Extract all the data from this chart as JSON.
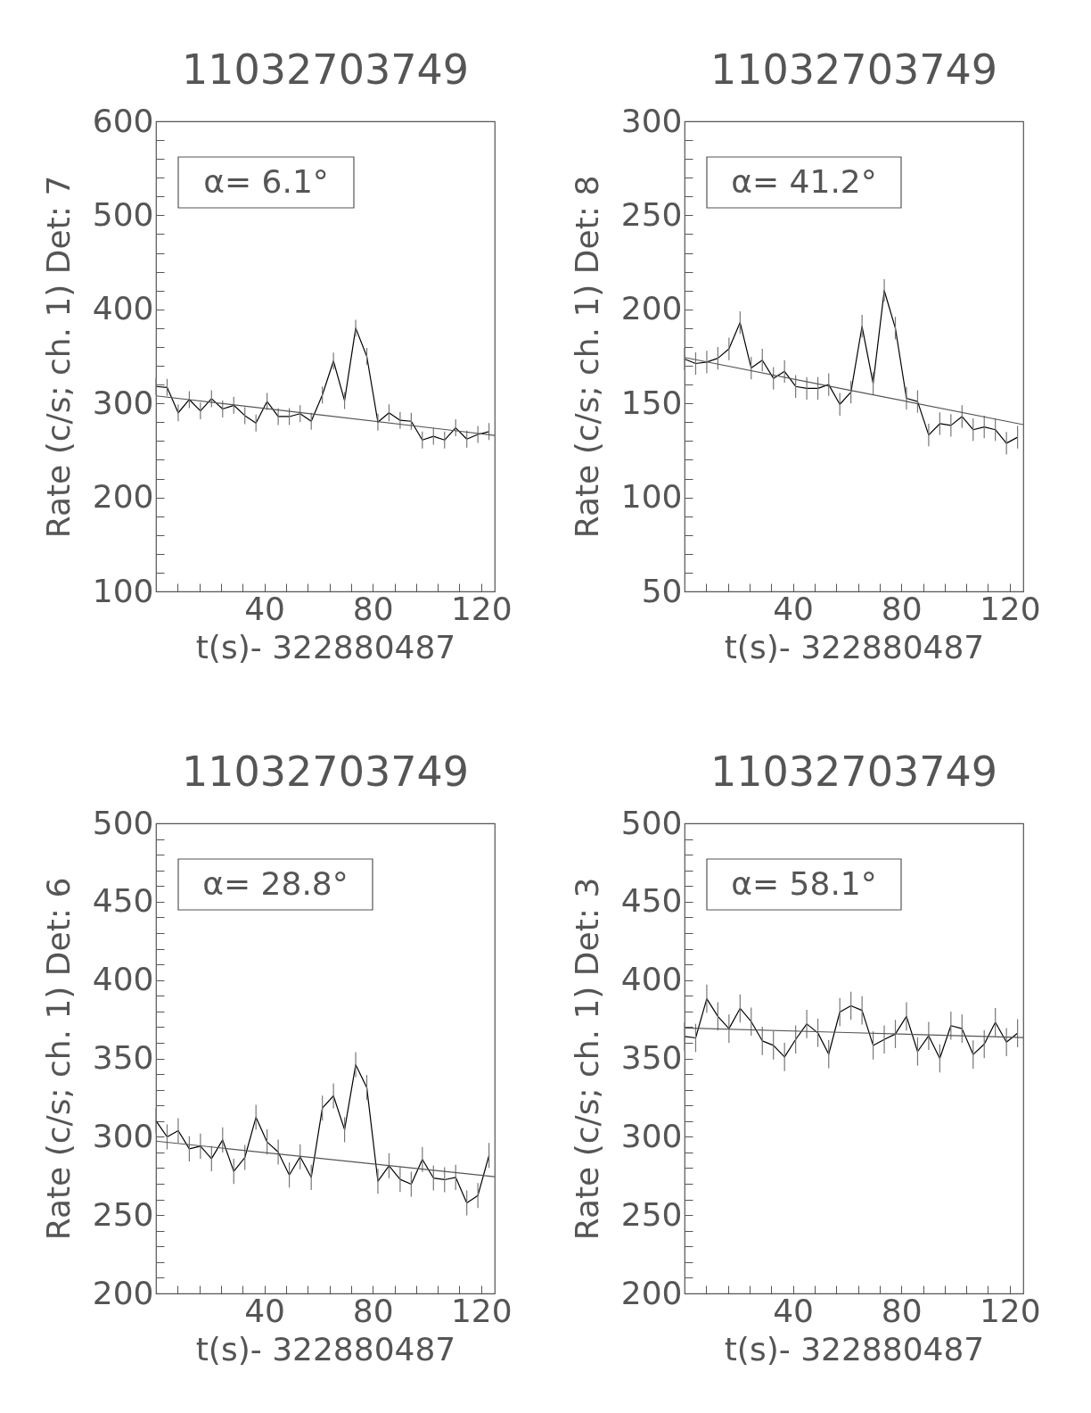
{
  "chart_data": [
    {
      "type": "line",
      "title": "11032703749",
      "xlabel": "t(s)- 322880487",
      "ylabel": "Rate (c/s; ch. 1) Det: 7",
      "annotations": [
        "α= 6.1°"
      ],
      "x": [
        0,
        4.1,
        8.2,
        12.3,
        16.4,
        20.5,
        24.6,
        28.7,
        32.8,
        36.9,
        41,
        45.1,
        49.2,
        53.2,
        57.3,
        61.4,
        65.5,
        69.6,
        73.7,
        77.8,
        81.9,
        86,
        90.1,
        94.2,
        98.3,
        102.4,
        106.5,
        110.6,
        114.7,
        118.8,
        122.9
      ],
      "series": [
        {
          "color": "#000000",
          "values": [
            318,
            317,
            290,
            304,
            292,
            305,
            294,
            298,
            287,
            279,
            302,
            286,
            286,
            289,
            281,
            309,
            345,
            303,
            380,
            350,
            280,
            290,
            282,
            281,
            261,
            265,
            261,
            274,
            262,
            267,
            270
          ],
          "errors": [
            9,
            9,
            9,
            9,
            9,
            9,
            9,
            9,
            9,
            9,
            9,
            9,
            9,
            9,
            9,
            9,
            9,
            9,
            9,
            9,
            9,
            9,
            9,
            9,
            9,
            9,
            9,
            9,
            9,
            9,
            9
          ]
        },
        {
          "color": "#555555",
          "x": [
            0,
            60,
            125
          ],
          "values": [
            308,
            288,
            266
          ]
        }
      ],
      "xlim": [
        0,
        125
      ],
      "xticks": [
        {
          "value": 8,
          "label": null
        },
        {
          "value": 16,
          "label": null
        },
        {
          "value": 24,
          "label": null
        },
        {
          "value": 32,
          "label": null
        },
        40,
        {
          "value": 48,
          "label": null
        },
        {
          "value": 56,
          "label": null
        },
        {
          "value": 64,
          "label": null
        },
        {
          "value": 72,
          "label": null
        },
        80,
        {
          "value": 88,
          "label": null
        },
        {
          "value": 96,
          "label": null
        },
        {
          "value": 104,
          "label": null
        },
        {
          "value": 112,
          "label": null
        },
        120
      ],
      "ylim": [
        100,
        600
      ],
      "yticks": [
        100,
        {
          "value": 120,
          "label": null
        },
        {
          "value": 140,
          "label": null
        },
        {
          "value": 160,
          "label": null
        },
        {
          "value": 180,
          "label": null
        },
        200,
        {
          "value": 220,
          "label": null
        },
        {
          "value": 240,
          "label": null
        },
        {
          "value": 260,
          "label": null
        },
        {
          "value": 280,
          "label": null
        },
        300,
        {
          "value": 320,
          "label": null
        },
        {
          "value": 340,
          "label": null
        },
        {
          "value": 360,
          "label": null
        },
        {
          "value": 380,
          "label": null
        },
        400,
        {
          "value": 420,
          "label": null
        },
        {
          "value": 440,
          "label": null
        },
        {
          "value": 460,
          "label": null
        },
        {
          "value": 480,
          "label": null
        },
        500,
        {
          "value": 520,
          "label": null
        },
        {
          "value": 540,
          "label": null
        },
        {
          "value": 560,
          "label": null
        },
        {
          "value": 580,
          "label": null
        },
        600
      ]
    },
    {
      "type": "line",
      "title": "11032703749",
      "xlabel": "t(s)- 322880487",
      "ylabel": "Rate (c/s; ch. 1) Det: 8",
      "annotations": [
        "α= 41.2°"
      ],
      "x": [
        0,
        4.1,
        8.2,
        12.3,
        16.4,
        20.5,
        24.6,
        28.7,
        32.8,
        36.9,
        41,
        45.1,
        49.2,
        53.2,
        57.3,
        61.4,
        65.5,
        69.6,
        73.7,
        77.8,
        81.9,
        86,
        90.1,
        94.2,
        98.3,
        102.4,
        106.5,
        110.6,
        114.7,
        118.8,
        122.9
      ],
      "series": [
        {
          "color": "#000000",
          "values": [
            173.6,
            171.2,
            172,
            174,
            179,
            193,
            168.8,
            173,
            163.3,
            167,
            159,
            158,
            158,
            160,
            149.5,
            156,
            191,
            160.6,
            210,
            190,
            152.7,
            151,
            133.2,
            139.2,
            138.3,
            143,
            136,
            137.5,
            136,
            128.8,
            132
          ],
          "errors": [
            6,
            6,
            6,
            6,
            6,
            6,
            6,
            6,
            6,
            6,
            6,
            6,
            6,
            6,
            6,
            6,
            6,
            6,
            6,
            6,
            6,
            6,
            6,
            6,
            6,
            6,
            6,
            6,
            6,
            6,
            6
          ]
        },
        {
          "color": "#555555",
          "x": [
            0,
            60,
            125
          ],
          "values": [
            174.4,
            157.3,
            138.7
          ]
        }
      ],
      "xlim": [
        0,
        125
      ],
      "xticks": [
        {
          "value": 8,
          "label": null
        },
        {
          "value": 16,
          "label": null
        },
        {
          "value": 24,
          "label": null
        },
        {
          "value": 32,
          "label": null
        },
        40,
        {
          "value": 48,
          "label": null
        },
        {
          "value": 56,
          "label": null
        },
        {
          "value": 64,
          "label": null
        },
        {
          "value": 72,
          "label": null
        },
        80,
        {
          "value": 88,
          "label": null
        },
        {
          "value": 96,
          "label": null
        },
        {
          "value": 104,
          "label": null
        },
        {
          "value": 112,
          "label": null
        },
        120
      ],
      "ylim": [
        50,
        300
      ],
      "yticks": [
        50,
        {
          "value": 60,
          "label": null
        },
        {
          "value": 70,
          "label": null
        },
        {
          "value": 80,
          "label": null
        },
        {
          "value": 90,
          "label": null
        },
        100,
        {
          "value": 110,
          "label": null
        },
        {
          "value": 120,
          "label": null
        },
        {
          "value": 130,
          "label": null
        },
        {
          "value": 140,
          "label": null
        },
        150,
        {
          "value": 160,
          "label": null
        },
        {
          "value": 170,
          "label": null
        },
        {
          "value": 180,
          "label": null
        },
        {
          "value": 190,
          "label": null
        },
        200,
        {
          "value": 210,
          "label": null
        },
        {
          "value": 220,
          "label": null
        },
        {
          "value": 230,
          "label": null
        },
        {
          "value": 240,
          "label": null
        },
        250,
        {
          "value": 260,
          "label": null
        },
        {
          "value": 270,
          "label": null
        },
        {
          "value": 280,
          "label": null
        },
        {
          "value": 290,
          "label": null
        },
        300
      ]
    },
    {
      "type": "line",
      "title": "11032703749",
      "xlabel": "t(s)- 322880487",
      "ylabel": "Rate (c/s; ch. 1) Det: 6",
      "annotations": [
        "α= 28.8°"
      ],
      "x": [
        0,
        4.1,
        8.2,
        12.3,
        16.4,
        20.5,
        24.6,
        28.7,
        32.8,
        36.9,
        41,
        45.1,
        49.2,
        53.2,
        57.3,
        61.4,
        65.5,
        69.6,
        73.7,
        77.8,
        81.9,
        86,
        90.1,
        94.2,
        98.3,
        102.4,
        106.5,
        110.6,
        114.7,
        118.8,
        122.9
      ],
      "series": [
        {
          "color": "#000000",
          "values": [
            310.2,
            299.9,
            303.9,
            292.3,
            294,
            286,
            298,
            277.9,
            286.8,
            312.4,
            296.7,
            290.2,
            275.6,
            287.2,
            274.1,
            318.3,
            326.1,
            304.5,
            346,
            331.4,
            271.6,
            281.5,
            272.8,
            269.7,
            285.5,
            273.7,
            272.6,
            274.1,
            257.8,
            262.5,
            288.1
          ],
          "errors": [
            8,
            8,
            8,
            8,
            8,
            8,
            8,
            8,
            8,
            8,
            8,
            8,
            8,
            8,
            8,
            8,
            8,
            8,
            8,
            8,
            8,
            8,
            8,
            8,
            8,
            8,
            8,
            8,
            8,
            8,
            8
          ]
        },
        {
          "color": "#555555",
          "x": [
            0,
            60,
            125
          ],
          "values": [
            297.2,
            286.3,
            274.5
          ]
        }
      ],
      "xlim": [
        0,
        125
      ],
      "xticks": [
        {
          "value": 8,
          "label": null
        },
        {
          "value": 16,
          "label": null
        },
        {
          "value": 24,
          "label": null
        },
        {
          "value": 32,
          "label": null
        },
        40,
        {
          "value": 48,
          "label": null
        },
        {
          "value": 56,
          "label": null
        },
        {
          "value": 64,
          "label": null
        },
        {
          "value": 72,
          "label": null
        },
        80,
        {
          "value": 88,
          "label": null
        },
        {
          "value": 96,
          "label": null
        },
        {
          "value": 104,
          "label": null
        },
        {
          "value": 112,
          "label": null
        },
        120
      ],
      "ylim": [
        200,
        500
      ],
      "yticks": [
        200,
        {
          "value": 210,
          "label": null
        },
        {
          "value": 220,
          "label": null
        },
        {
          "value": 230,
          "label": null
        },
        {
          "value": 240,
          "label": null
        },
        250,
        {
          "value": 260,
          "label": null
        },
        {
          "value": 270,
          "label": null
        },
        {
          "value": 280,
          "label": null
        },
        {
          "value": 290,
          "label": null
        },
        300,
        {
          "value": 310,
          "label": null
        },
        {
          "value": 320,
          "label": null
        },
        {
          "value": 330,
          "label": null
        },
        {
          "value": 340,
          "label": null
        },
        350,
        {
          "value": 360,
          "label": null
        },
        {
          "value": 370,
          "label": null
        },
        {
          "value": 380,
          "label": null
        },
        {
          "value": 390,
          "label": null
        },
        400,
        {
          "value": 410,
          "label": null
        },
        {
          "value": 420,
          "label": null
        },
        {
          "value": 430,
          "label": null
        },
        {
          "value": 440,
          "label": null
        },
        450,
        {
          "value": 460,
          "label": null
        },
        {
          "value": 470,
          "label": null
        },
        {
          "value": 480,
          "label": null
        },
        {
          "value": 490,
          "label": null
        },
        500
      ]
    },
    {
      "type": "line",
      "title": "11032703749",
      "xlabel": "t(s)- 322880487",
      "ylabel": "Rate (c/s; ch. 1) Det: 3",
      "annotations": [
        "α= 58.1°"
      ],
      "x": [
        0,
        4.1,
        8.2,
        12.3,
        16.4,
        20.5,
        24.6,
        28.7,
        32.8,
        36.9,
        41,
        45.1,
        49.2,
        53.2,
        57.3,
        61.4,
        65.5,
        69.6,
        73.7,
        77.8,
        81.9,
        86,
        90.1,
        94.2,
        98.3,
        102.4,
        106.5,
        110.6,
        114.7,
        118.8,
        122.9
      ],
      "series": [
        {
          "color": "#000000",
          "values": [
            364,
            363.1,
            388.1,
            376.8,
            369,
            381.9,
            373.5,
            361.2,
            358.3,
            350.9,
            362.1,
            372,
            366.3,
            352.7,
            379.6,
            383.6,
            380.7,
            358.3,
            362.1,
            365.6,
            376.8,
            354.4,
            364.4,
            350,
            370.9,
            369,
            352.5,
            359.1,
            373.1,
            360.4,
            366.1
          ],
          "errors": [
            9,
            9,
            9,
            9,
            9,
            9,
            9,
            9,
            9,
            9,
            9,
            9,
            9,
            9,
            9,
            9,
            9,
            9,
            9,
            9,
            9,
            9,
            9,
            9,
            9,
            9,
            9,
            9,
            9,
            9,
            9
          ]
        },
        {
          "color": "#555555",
          "x": [
            0,
            60,
            125
          ],
          "values": [
            369.4,
            366.5,
            363.3
          ]
        }
      ],
      "xlim": [
        0,
        125
      ],
      "xticks": [
        {
          "value": 8,
          "label": null
        },
        {
          "value": 16,
          "label": null
        },
        {
          "value": 24,
          "label": null
        },
        {
          "value": 32,
          "label": null
        },
        40,
        {
          "value": 48,
          "label": null
        },
        {
          "value": 56,
          "label": null
        },
        {
          "value": 64,
          "label": null
        },
        {
          "value": 72,
          "label": null
        },
        80,
        {
          "value": 88,
          "label": null
        },
        {
          "value": 96,
          "label": null
        },
        {
          "value": 104,
          "label": null
        },
        {
          "value": 112,
          "label": null
        },
        120
      ],
      "ylim": [
        200,
        500
      ],
      "yticks": [
        200,
        {
          "value": 210,
          "label": null
        },
        {
          "value": 220,
          "label": null
        },
        {
          "value": 230,
          "label": null
        },
        {
          "value": 240,
          "label": null
        },
        250,
        {
          "value": 260,
          "label": null
        },
        {
          "value": 270,
          "label": null
        },
        {
          "value": 280,
          "label": null
        },
        {
          "value": 290,
          "label": null
        },
        300,
        {
          "value": 310,
          "label": null
        },
        {
          "value": 320,
          "label": null
        },
        {
          "value": 330,
          "label": null
        },
        {
          "value": 340,
          "label": null
        },
        350,
        {
          "value": 360,
          "label": null
        },
        {
          "value": 370,
          "label": null
        },
        {
          "value": 380,
          "label": null
        },
        {
          "value": 390,
          "label": null
        },
        400,
        {
          "value": 410,
          "label": null
        },
        {
          "value": 420,
          "label": null
        },
        {
          "value": 430,
          "label": null
        },
        {
          "value": 440,
          "label": null
        },
        450,
        {
          "value": 460,
          "label": null
        },
        {
          "value": 470,
          "label": null
        },
        {
          "value": 480,
          "label": null
        },
        {
          "value": 490,
          "label": null
        },
        500
      ]
    }
  ]
}
